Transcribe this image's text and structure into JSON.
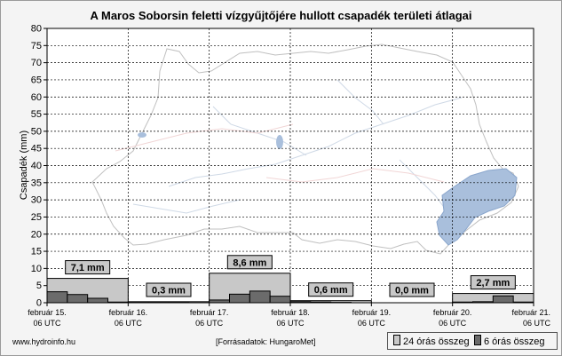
{
  "chart_data": {
    "type": "bar",
    "title": "A Maros Soborsin feletti vízgyűjtőjére hullott csapadék területi átlagai",
    "ylabel": "Csapadék (mm)",
    "ylim": [
      0,
      80
    ],
    "yticks": [
      0,
      5,
      10,
      15,
      20,
      25,
      30,
      35,
      40,
      45,
      50,
      55,
      60,
      65,
      70,
      75,
      80
    ],
    "grid": true,
    "x_ticks": [
      {
        "line1": "február 15.",
        "line2": "06 UTC"
      },
      {
        "line1": "február 16.",
        "line2": "06 UTC"
      },
      {
        "line1": "február 17.",
        "line2": "06 UTC"
      },
      {
        "line1": "február 18.",
        "line2": "06 UTC"
      },
      {
        "line1": "február 19.",
        "line2": "06 UTC"
      },
      {
        "line1": "február 20.",
        "line2": "06 UTC"
      },
      {
        "line1": "február 21.",
        "line2": "06 UTC"
      }
    ],
    "series": [
      {
        "name": "24 órás összeg",
        "color": "#c8c8c8",
        "values": [
          7.1,
          0.3,
          8.6,
          0.6,
          0.0,
          2.7
        ]
      },
      {
        "name": "6 órás összeg",
        "color": "#6b6b6b",
        "values": [
          [
            3.2,
            2.4,
            1.3,
            0.2
          ],
          [
            0.1,
            0.1,
            0.1,
            0.0
          ],
          [
            0.8,
            2.5,
            3.4,
            1.9
          ],
          [
            0.3,
            0.2,
            0.1,
            0.0
          ],
          [
            0.0,
            0.0,
            0.0,
            0.0
          ],
          [
            0.2,
            0.3,
            2.0,
            0.2
          ]
        ]
      }
    ],
    "data_labels": [
      "7,1 mm",
      "0,3 mm",
      "8,6 mm",
      "0,6 mm",
      "0,0 mm",
      "2,7 mm"
    ],
    "legend_position": "bottom-right"
  },
  "footer": {
    "website": "www.hydroinfo.hu",
    "source": "[Forrásadatok: HungaroMet]"
  }
}
